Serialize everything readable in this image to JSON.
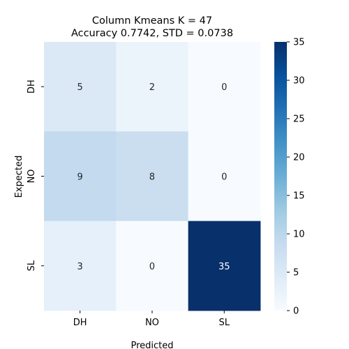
{
  "chart_data": {
    "type": "heatmap",
    "title_line1": "Column Kmeans K = 47",
    "title_line2": "Accuracy 0.7742, STD = 0.0738",
    "xlabel": "Predicted",
    "ylabel": "Expected",
    "x_categories": [
      "DH",
      "NO",
      "SL"
    ],
    "y_categories": [
      "DH",
      "NO",
      "SL"
    ],
    "values": [
      [
        5,
        2,
        0
      ],
      [
        9,
        8,
        0
      ],
      [
        3,
        0,
        35
      ]
    ],
    "colormap": "Blues",
    "vmin": 0,
    "vmax": 35,
    "colorbar_ticks": [
      0,
      5,
      10,
      15,
      20,
      25,
      30,
      35
    ],
    "colorbar_tick_labels": [
      "0",
      "5",
      "10",
      "15",
      "20",
      "25",
      "30",
      "35"
    ],
    "colors": {
      "low": "#f7fbff",
      "high": "#08306b"
    }
  }
}
